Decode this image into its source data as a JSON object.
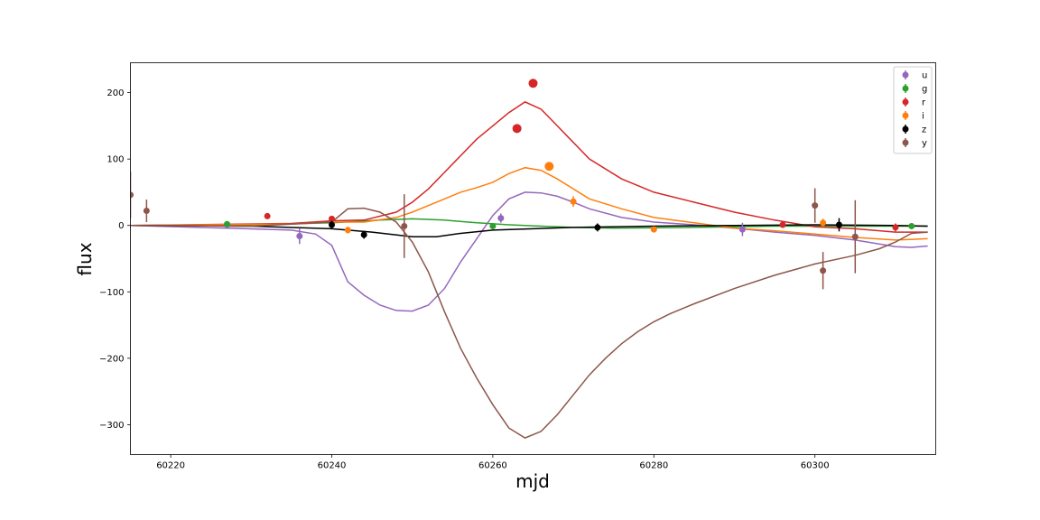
{
  "chart_data": {
    "type": "scatter",
    "xlabel": "mjd",
    "ylabel": "flux",
    "xlim": [
      60215,
      60315
    ],
    "ylim": [
      -345,
      245
    ],
    "x_ticks": [
      60220,
      60240,
      60260,
      60280,
      60300
    ],
    "y_ticks": [
      200,
      100,
      0,
      -100,
      -200,
      -300
    ],
    "x_tick_labels": [
      "60220",
      "60240",
      "60260",
      "60280",
      "60300"
    ],
    "y_tick_labels": [
      "200",
      "100",
      "0",
      "−100",
      "−200",
      "−300"
    ],
    "grid": false,
    "legend_position": "top-right",
    "series": [
      {
        "name": "u",
        "color": "#9467bd",
        "points": [
          [
            60227,
            1,
            3
          ],
          [
            60236,
            -16,
            12
          ],
          [
            60261,
            11,
            7
          ],
          [
            60291,
            -6,
            10
          ]
        ],
        "model": [
          [
            60215,
            0
          ],
          [
            60227,
            -4
          ],
          [
            60235,
            -7
          ],
          [
            60238,
            -13
          ],
          [
            60240,
            -30
          ],
          [
            60242,
            -85
          ],
          [
            60244,
            -105
          ],
          [
            60246,
            -120
          ],
          [
            60248,
            -128
          ],
          [
            60250,
            -129
          ],
          [
            60252,
            -120
          ],
          [
            60254,
            -95
          ],
          [
            60256,
            -55
          ],
          [
            60258,
            -20
          ],
          [
            60260,
            15
          ],
          [
            60262,
            40
          ],
          [
            60264,
            50
          ],
          [
            60266,
            49
          ],
          [
            60268,
            44
          ],
          [
            60270,
            35
          ],
          [
            60272,
            25
          ],
          [
            60276,
            12
          ],
          [
            60280,
            5
          ],
          [
            60285,
            1
          ],
          [
            60290,
            -4
          ],
          [
            60295,
            -10
          ],
          [
            60300,
            -15
          ],
          [
            60305,
            -22
          ],
          [
            60310,
            -32
          ],
          [
            60312,
            -33
          ],
          [
            60314,
            -31
          ]
        ]
      },
      {
        "name": "g",
        "color": "#2ca02c",
        "points": [
          [
            60227,
            2,
            3
          ],
          [
            60260,
            -1,
            4
          ],
          [
            60312,
            -1,
            4
          ]
        ],
        "model": [
          [
            60215,
            0
          ],
          [
            60230,
            1
          ],
          [
            60240,
            4
          ],
          [
            60246,
            8
          ],
          [
            60250,
            10
          ],
          [
            60254,
            8
          ],
          [
            60258,
            4
          ],
          [
            60262,
            1
          ],
          [
            60266,
            -1
          ],
          [
            60270,
            -3
          ],
          [
            60275,
            -4
          ],
          [
            60285,
            -3
          ],
          [
            60295,
            -1
          ],
          [
            60305,
            -1
          ],
          [
            60314,
            -1
          ]
        ]
      },
      {
        "name": "r",
        "color": "#d62728",
        "points": [
          [
            60232,
            14,
            3
          ],
          [
            60240,
            10,
            3
          ],
          [
            60263,
            146,
            5
          ],
          [
            60265,
            214,
            5
          ],
          [
            60296,
            1,
            3
          ],
          [
            60310,
            -3,
            6
          ]
        ],
        "model": [
          [
            60215,
            0
          ],
          [
            60235,
            3
          ],
          [
            60240,
            7
          ],
          [
            60244,
            8
          ],
          [
            60248,
            20
          ],
          [
            60250,
            35
          ],
          [
            60252,
            55
          ],
          [
            60254,
            80
          ],
          [
            60256,
            105
          ],
          [
            60258,
            130
          ],
          [
            60260,
            150
          ],
          [
            60262,
            170
          ],
          [
            60264,
            186
          ],
          [
            60266,
            175
          ],
          [
            60268,
            150
          ],
          [
            60270,
            125
          ],
          [
            60272,
            100
          ],
          [
            60276,
            70
          ],
          [
            60280,
            50
          ],
          [
            60285,
            35
          ],
          [
            60290,
            20
          ],
          [
            60295,
            8
          ],
          [
            60300,
            -2
          ],
          [
            60305,
            -5
          ],
          [
            60310,
            -10
          ],
          [
            60314,
            -10
          ]
        ]
      },
      {
        "name": "i",
        "color": "#ff7f0e",
        "points": [
          [
            60242,
            -7,
            5
          ],
          [
            60267,
            89,
            5
          ],
          [
            60270,
            36,
            8
          ],
          [
            60280,
            -6,
            4
          ],
          [
            60301,
            4,
            6
          ]
        ],
        "model": [
          [
            60215,
            0
          ],
          [
            60235,
            2
          ],
          [
            60240,
            5
          ],
          [
            60244,
            5
          ],
          [
            60248,
            12
          ],
          [
            60250,
            20
          ],
          [
            60252,
            30
          ],
          [
            60254,
            40
          ],
          [
            60256,
            50
          ],
          [
            60258,
            57
          ],
          [
            60260,
            65
          ],
          [
            60262,
            78
          ],
          [
            60264,
            87
          ],
          [
            60266,
            83
          ],
          [
            60268,
            70
          ],
          [
            60270,
            55
          ],
          [
            60272,
            40
          ],
          [
            60276,
            25
          ],
          [
            60280,
            12
          ],
          [
            60285,
            4
          ],
          [
            60290,
            -4
          ],
          [
            60295,
            -8
          ],
          [
            60300,
            -13
          ],
          [
            60305,
            -18
          ],
          [
            60310,
            -22
          ],
          [
            60314,
            -20
          ]
        ]
      },
      {
        "name": "z",
        "color": "#000000",
        "points": [
          [
            60240,
            1,
            6
          ],
          [
            60244,
            -14,
            6
          ],
          [
            60273,
            -3,
            6
          ],
          [
            60303,
            1,
            10
          ]
        ],
        "model": [
          [
            60215,
            0
          ],
          [
            60230,
            -1
          ],
          [
            60240,
            -5
          ],
          [
            60245,
            -10
          ],
          [
            60250,
            -17
          ],
          [
            60253,
            -17
          ],
          [
            60256,
            -12
          ],
          [
            60260,
            -7
          ],
          [
            60265,
            -5
          ],
          [
            60270,
            -3
          ],
          [
            60280,
            -1
          ],
          [
            60290,
            0
          ],
          [
            60300,
            1
          ],
          [
            60310,
            0
          ],
          [
            60314,
            -1
          ]
        ]
      },
      {
        "name": "y",
        "color": "#8c564b",
        "points": [
          [
            60215,
            46,
            35
          ],
          [
            60217,
            22,
            17
          ],
          [
            60249,
            -1,
            48
          ],
          [
            60300,
            30,
            26
          ],
          [
            60301,
            -68,
            28
          ],
          [
            60305,
            -17,
            55
          ]
        ],
        "model": [
          [
            60215,
            0
          ],
          [
            60230,
            -1
          ],
          [
            60240,
            5
          ],
          [
            60242,
            25
          ],
          [
            60244,
            26
          ],
          [
            60246,
            20
          ],
          [
            60248,
            5
          ],
          [
            60250,
            -25
          ],
          [
            60252,
            -70
          ],
          [
            60254,
            -130
          ],
          [
            60256,
            -185
          ],
          [
            60258,
            -230
          ],
          [
            60260,
            -270
          ],
          [
            60262,
            -305
          ],
          [
            60264,
            -320
          ],
          [
            60266,
            -310
          ],
          [
            60268,
            -285
          ],
          [
            60270,
            -255
          ],
          [
            60272,
            -225
          ],
          [
            60274,
            -200
          ],
          [
            60276,
            -178
          ],
          [
            60278,
            -160
          ],
          [
            60280,
            -145
          ],
          [
            60282,
            -133
          ],
          [
            60285,
            -118
          ],
          [
            60290,
            -95
          ],
          [
            60295,
            -75
          ],
          [
            60300,
            -58
          ],
          [
            60305,
            -45
          ],
          [
            60308,
            -35
          ],
          [
            60310,
            -25
          ],
          [
            60312,
            -12
          ],
          [
            60314,
            -10
          ]
        ]
      }
    ]
  }
}
